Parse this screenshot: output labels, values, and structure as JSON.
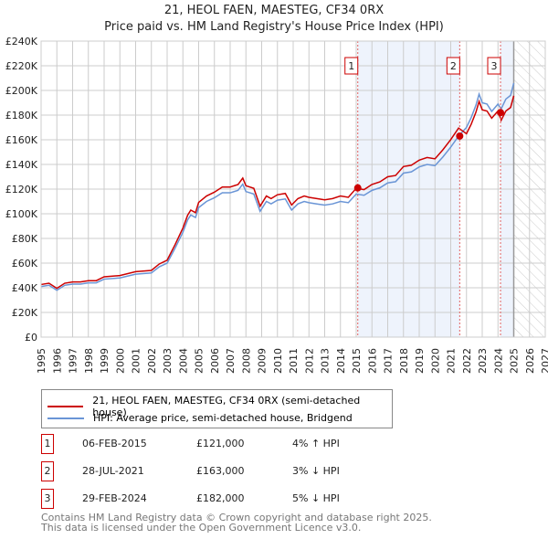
{
  "chart_data": {
    "type": "line",
    "title": "21, HEOL FAEN, MAESTEG, CF34 0RX",
    "subtitle": "Price paid vs. HM Land Registry's House Price Index (HPI)",
    "xlim": [
      1995,
      2027
    ],
    "ylim": [
      0,
      240000
    ],
    "yticks": [
      "£0",
      "£20K",
      "£40K",
      "£60K",
      "£80K",
      "£100K",
      "£120K",
      "£140K",
      "£160K",
      "£180K",
      "£200K",
      "£220K",
      "£240K"
    ],
    "xticks": [
      "1995",
      "1996",
      "1997",
      "1998",
      "1999",
      "2000",
      "2001",
      "2002",
      "2003",
      "2004",
      "2005",
      "2006",
      "2007",
      "2008",
      "2009",
      "2010",
      "2011",
      "2012",
      "2013",
      "2014",
      "2015",
      "2016",
      "2017",
      "2018",
      "2019",
      "2020",
      "2021",
      "2022",
      "2023",
      "2024",
      "2025",
      "2026",
      "2027"
    ],
    "hpi": {
      "x": [
        1995,
        1995.5,
        1996,
        1996.5,
        1997,
        1997.5,
        1998,
        1998.5,
        1999,
        2000,
        2001,
        2002,
        2002.5,
        2003,
        2003.5,
        2004,
        2004.3,
        2004.5,
        2004.8,
        2005,
        2005.5,
        2006,
        2006.5,
        2007,
        2007.5,
        2007.8,
        2008,
        2008.5,
        2008.9,
        2009.3,
        2009.6,
        2010,
        2010.5,
        2010.9,
        2011.3,
        2011.7,
        2012,
        2012.5,
        2013,
        2013.5,
        2014,
        2014.5,
        2015,
        2015.5,
        2016,
        2016.5,
        2017,
        2017.5,
        2018,
        2018.5,
        2019,
        2019.5,
        2020,
        2020.5,
        2021,
        2021.5,
        2022,
        2022.3,
        2022.6,
        2022.8,
        2023,
        2023.3,
        2023.6,
        2024,
        2024.2,
        2024.5,
        2024.8,
        2025
      ],
      "y": [
        41000,
        42000,
        38000,
        42000,
        43000,
        43000,
        44000,
        44000,
        47000,
        48000,
        51000,
        52000,
        57000,
        60000,
        72000,
        85000,
        95000,
        99000,
        97000,
        105000,
        110000,
        113000,
        117000,
        117000,
        119000,
        124000,
        118000,
        116000,
        102000,
        110000,
        108000,
        111000,
        112000,
        103000,
        108000,
        110000,
        109000,
        108000,
        107000,
        108000,
        110000,
        109000,
        116000,
        115000,
        119000,
        121000,
        125000,
        126000,
        133000,
        134000,
        138000,
        140000,
        139000,
        146000,
        154000,
        163000,
        170000,
        178000,
        188000,
        197000,
        190000,
        189000,
        183000,
        189000,
        185000,
        193000,
        196000,
        206000
      ]
    },
    "series": [
      {
        "name": "21, HEOL FAEN, MAESTEG, CF34 0RX (semi-detached house)",
        "color": "#cc0000"
      },
      {
        "name": "HPI: Average price, semi-detached house, Bridgend",
        "color": "#6a95d6"
      }
    ],
    "sales": [
      {
        "id": "1",
        "date": "06-FEB-2015",
        "x": 2015.1,
        "price": 121000,
        "price_label": "£121,000",
        "hpi_label": "4% ↑ HPI"
      },
      {
        "id": "2",
        "date": "28-JUL-2021",
        "x": 2021.57,
        "price": 163000,
        "price_label": "£163,000",
        "hpi_label": "3% ↓ HPI"
      },
      {
        "id": "3",
        "date": "29-FEB-2024",
        "x": 2024.16,
        "price": 182000,
        "price_label": "£182,000",
        "hpi_label": "5% ↓ HPI"
      }
    ],
    "data_end": 2025.0
  },
  "footer": {
    "line1": "Contains HM Land Registry data © Crown copyright and database right 2025.",
    "line2": "This data is licensed under the Open Government Licence v3.0."
  }
}
